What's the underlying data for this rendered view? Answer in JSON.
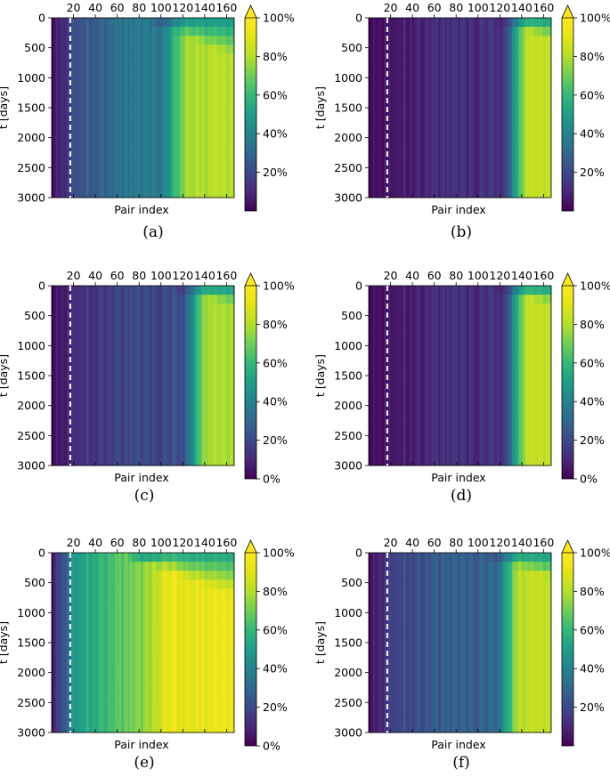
{
  "chart_data": [
    {
      "panel": "a",
      "type": "heatmap",
      "caption": "(a)",
      "xlabel": "Pair index",
      "ylabel": "t [days]",
      "x_ticks": [
        "20",
        "40",
        "60",
        "80",
        "100",
        "120",
        "140",
        "160"
      ],
      "y_ticks": [
        "0",
        "500",
        "1000",
        "1500",
        "2000",
        "2500",
        "3000"
      ],
      "xlim": [
        0,
        167
      ],
      "ylim": [
        0,
        3000
      ],
      "dashed_line_x": 17,
      "colorbar": {
        "ticks": [
          "20%",
          "40%",
          "60%",
          "80%",
          "100%"
        ],
        "extend": "max",
        "min": 0,
        "max": 100,
        "unit": "%"
      },
      "profile": {
        "start": 4,
        "early": 16,
        "mid": 24,
        "late": 40,
        "knee": 0.62,
        "top": 80,
        "heights": 0.35,
        "settle": 0.55
      }
    },
    {
      "panel": "b",
      "type": "heatmap",
      "caption": "(b)",
      "xlabel": "Pair index",
      "ylabel": "t [days]",
      "x_ticks": [
        "20",
        "40",
        "60",
        "80",
        "100",
        "120",
        "140",
        "160"
      ],
      "y_ticks": [
        "0",
        "500",
        "1000",
        "1500",
        "2000",
        "2500",
        "3000"
      ],
      "xlim": [
        0,
        167
      ],
      "ylim": [
        0,
        3000
      ],
      "dashed_line_x": 17,
      "colorbar": {
        "ticks": [
          "20%",
          "40%",
          "60%",
          "80%",
          "100%"
        ],
        "extend": "max",
        "min": 0,
        "max": 100,
        "unit": "%"
      },
      "profile": {
        "start": 2,
        "early": 6,
        "mid": 8,
        "late": 14,
        "knee": 0.74,
        "top": 82,
        "heights": 0.2,
        "settle": 0.35
      }
    },
    {
      "panel": "c",
      "type": "heatmap",
      "caption": "(c)",
      "xlabel": "Pair index",
      "ylabel": "t [days]",
      "x_ticks": [
        "20",
        "40",
        "60",
        "80",
        "100",
        "120",
        "140",
        "160"
      ],
      "y_ticks": [
        "0",
        "500",
        "1000",
        "1500",
        "2000",
        "2500",
        "3000"
      ],
      "xlim": [
        0,
        167
      ],
      "ylim": [
        0,
        3000
      ],
      "dashed_line_x": 17,
      "colorbar": {
        "ticks": [
          "0%",
          "20%",
          "40%",
          "60%",
          "80%",
          "100%"
        ],
        "extend": "max",
        "min": 0,
        "max": 100,
        "unit": "%"
      },
      "profile": {
        "start": 3,
        "early": 10,
        "mid": 14,
        "late": 22,
        "knee": 0.72,
        "top": 78,
        "heights": 0.25,
        "settle": 0.3
      }
    },
    {
      "panel": "d",
      "type": "heatmap",
      "caption": "(d)",
      "xlabel": "Pair index",
      "ylabel": "t [days]",
      "x_ticks": [
        "20",
        "40",
        "60",
        "80",
        "100",
        "120",
        "140",
        "160"
      ],
      "y_ticks": [
        "0",
        "500",
        "1000",
        "1500",
        "2000",
        "2500",
        "3000"
      ],
      "xlim": [
        0,
        167
      ],
      "ylim": [
        0,
        3000
      ],
      "dashed_line_x": 17,
      "colorbar": {
        "ticks": [
          "0%",
          "20%",
          "40%",
          "60%",
          "80%",
          "100%"
        ],
        "extend": "max",
        "min": 0,
        "max": 100,
        "unit": "%"
      },
      "profile": {
        "start": 2,
        "early": 6,
        "mid": 8,
        "late": 14,
        "knee": 0.74,
        "top": 82,
        "heights": 0.2,
        "settle": 0.3
      }
    },
    {
      "panel": "e",
      "type": "heatmap",
      "caption": "(e)",
      "xlabel": "Pair index",
      "ylabel": "t [days]",
      "x_ticks": [
        "20",
        "40",
        "60",
        "80",
        "100",
        "120",
        "140",
        "160"
      ],
      "y_ticks": [
        "0",
        "500",
        "1000",
        "1500",
        "2000",
        "2500",
        "3000"
      ],
      "xlim": [
        0,
        167
      ],
      "ylim": [
        0,
        3000
      ],
      "dashed_line_x": 17,
      "colorbar": {
        "ticks": [
          "0%",
          "20%",
          "40%",
          "60%",
          "80%",
          "100%"
        ],
        "extend": "max",
        "min": 0,
        "max": 100,
        "unit": "%"
      },
      "profile": {
        "start": 6,
        "early": 34,
        "mid": 50,
        "late": 72,
        "knee": 0.5,
        "top": 92,
        "heights": 0.45,
        "settle": 0.5
      }
    },
    {
      "panel": "f",
      "type": "heatmap",
      "caption": "(f)",
      "xlabel": "Pair index",
      "ylabel": "t [days]",
      "x_ticks": [
        "20",
        "40",
        "60",
        "80",
        "100",
        "120",
        "140",
        "160"
      ],
      "y_ticks": [
        "0",
        "500",
        "1000",
        "1500",
        "2000",
        "2500",
        "3000"
      ],
      "xlim": [
        0,
        167
      ],
      "ylim": [
        0,
        3000
      ],
      "dashed_line_x": 17,
      "colorbar": {
        "ticks": [
          "20%",
          "40%",
          "60%",
          "80%",
          "100%"
        ],
        "extend": "max",
        "min": 0,
        "max": 100,
        "unit": "%"
      },
      "profile": {
        "start": 3,
        "early": 14,
        "mid": 20,
        "late": 30,
        "knee": 0.7,
        "top": 82,
        "heights": 0.3,
        "settle": 0.4
      }
    }
  ]
}
